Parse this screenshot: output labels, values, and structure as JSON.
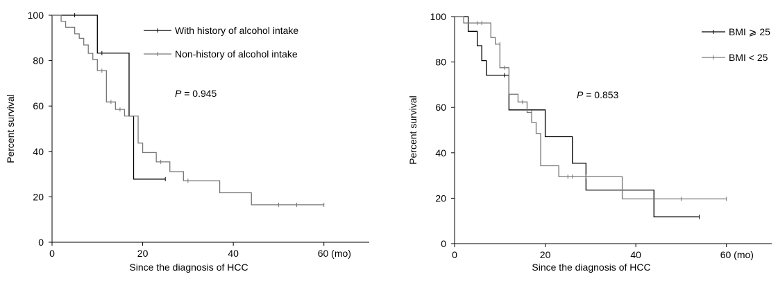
{
  "chart_data": [
    {
      "type": "line",
      "subtype": "kaplan-meier step",
      "title": "",
      "xlabel": "Since the diagnosis of HCC",
      "ylabel": "Percent survival",
      "xlim": [
        0,
        70
      ],
      "ylim": [
        0,
        100
      ],
      "xticks": [
        0,
        20,
        40,
        60
      ],
      "xtick_labels": [
        "0",
        "20",
        "40",
        "60 (mo)"
      ],
      "yticks": [
        0,
        20,
        40,
        60,
        80,
        100
      ],
      "ytick_labels": [
        "0",
        "20",
        "40",
        "60",
        "80",
        "100"
      ],
      "grid": false,
      "legend_position": "top-right",
      "annotation": {
        "p_symbol": "P",
        "p_text": "= 0.945"
      },
      "series": [
        {
          "name": "With history of alcohol intake",
          "color": "#000000",
          "steps": [
            [
              0,
              100
            ],
            [
              10,
              83.3
            ],
            [
              17,
              55.6
            ],
            [
              18,
              27.8
            ],
            [
              25,
              27.8
            ]
          ],
          "censored": [
            [
              5,
              100
            ],
            [
              11,
              83.3
            ],
            [
              25,
              27.8
            ]
          ]
        },
        {
          "name": "Non-history of alcohol intake",
          "color": "#777777",
          "steps": [
            [
              0,
              100
            ],
            [
              2,
              97.3
            ],
            [
              3,
              94.7
            ],
            [
              5,
              91.8
            ],
            [
              6,
              89.8
            ],
            [
              7,
              86.9
            ],
            [
              8,
              83.2
            ],
            [
              9,
              80.5
            ],
            [
              10,
              75.6
            ],
            [
              12,
              61.8
            ],
            [
              14,
              58.5
            ],
            [
              16,
              55.6
            ],
            [
              19,
              43.7
            ],
            [
              20,
              39.5
            ],
            [
              23,
              35.4
            ],
            [
              26,
              31.1
            ],
            [
              29,
              27.1
            ],
            [
              37,
              21.8
            ],
            [
              44,
              16.5
            ],
            [
              60,
              16.5
            ]
          ],
          "censored": [
            [
              11,
              75.6
            ],
            [
              13,
              61.8
            ],
            [
              15,
              58.5
            ],
            [
              24,
              35.4
            ],
            [
              30,
              27.1
            ],
            [
              50,
              16.5
            ],
            [
              54,
              16.5
            ],
            [
              60,
              16.5
            ]
          ]
        }
      ]
    },
    {
      "type": "line",
      "subtype": "kaplan-meier step",
      "title": "",
      "xlabel": "Since the diagnosis of HCC",
      "ylabel": "Percent survival",
      "xlim": [
        0,
        70
      ],
      "ylim": [
        0,
        100
      ],
      "xticks": [
        0,
        20,
        40,
        60
      ],
      "xtick_labels": [
        "0",
        "20",
        "40",
        "60 (mo)"
      ],
      "yticks": [
        0,
        20,
        40,
        60,
        80,
        100
      ],
      "ytick_labels": [
        "0",
        "20",
        "40",
        "60",
        "80",
        "100"
      ],
      "grid": false,
      "legend_position": "top-right",
      "annotation": {
        "p_symbol": "P",
        "p_text": "= 0.853"
      },
      "series": [
        {
          "name": "BMI ⩾ 25",
          "color": "#000000",
          "steps": [
            [
              0,
              100
            ],
            [
              3,
              93.5
            ],
            [
              5,
              87.2
            ],
            [
              6,
              80.6
            ],
            [
              7,
              74.2
            ],
            [
              12,
              58.9
            ],
            [
              20,
              47.1
            ],
            [
              26,
              35.4
            ],
            [
              29,
              23.6
            ],
            [
              44,
              11.8
            ],
            [
              54,
              11.8
            ]
          ],
          "censored": [
            [
              11,
              74.2
            ],
            [
              54,
              11.8
            ]
          ]
        },
        {
          "name": "BMI < 25",
          "color": "#777777",
          "steps": [
            [
              0,
              100
            ],
            [
              2,
              97.2
            ],
            [
              8,
              90.8
            ],
            [
              9,
              87.9
            ],
            [
              10,
              77.5
            ],
            [
              12,
              65.8
            ],
            [
              14,
              62.4
            ],
            [
              16,
              57.8
            ],
            [
              17,
              53.4
            ],
            [
              18,
              48.5
            ],
            [
              19,
              34.3
            ],
            [
              23,
              29.5
            ],
            [
              37,
              19.7
            ],
            [
              60,
              19.7
            ]
          ],
          "censored": [
            [
              5,
              97.2
            ],
            [
              6,
              97.2
            ],
            [
              10,
              87.9
            ],
            [
              11,
              77.5
            ],
            [
              15,
              62.4
            ],
            [
              17,
              57.8
            ],
            [
              25,
              29.5
            ],
            [
              26,
              29.5
            ],
            [
              29,
              29.5
            ],
            [
              50,
              19.7
            ],
            [
              60,
              19.7
            ]
          ]
        }
      ]
    }
  ]
}
